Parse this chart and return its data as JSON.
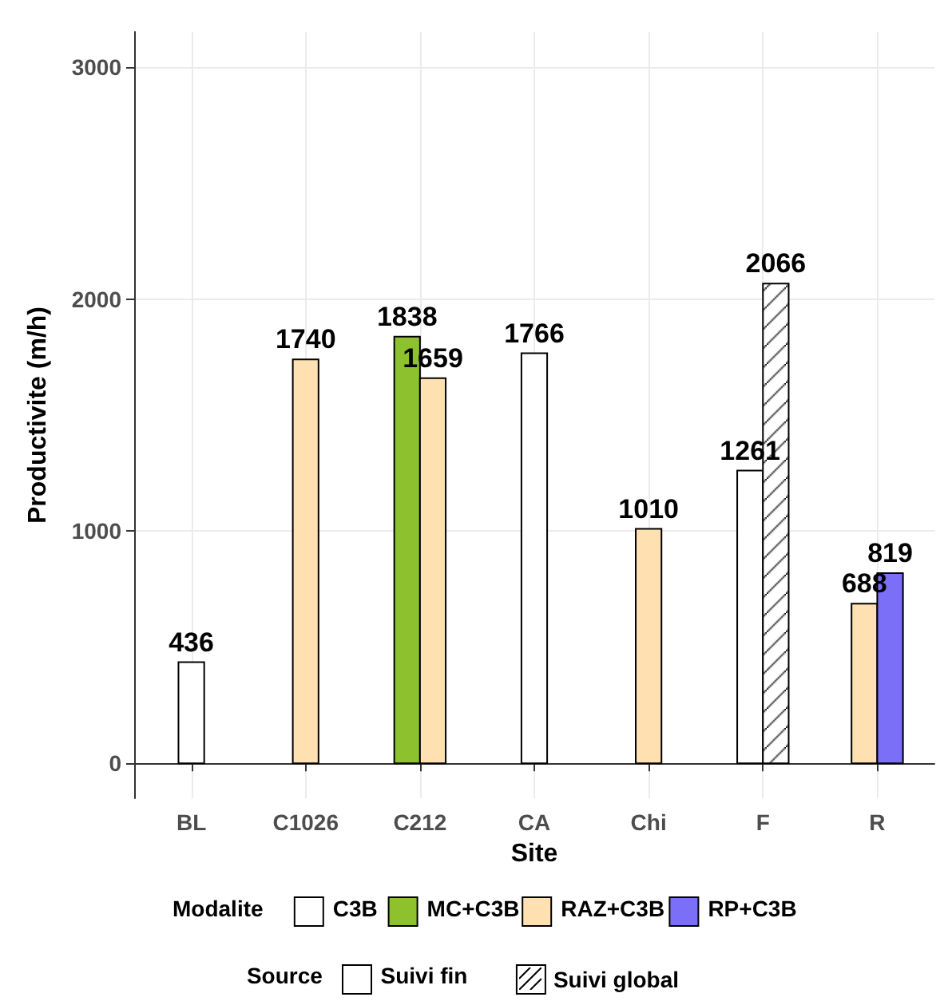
{
  "chart_data": {
    "type": "bar",
    "xlabel": "Site",
    "ylabel": "Productivite (m/h)",
    "legend_title": "Modalite",
    "annotations": [
      "Source",
      "Suivi fin"
    ],
    "categories": [
      "BL",
      "C1026",
      "C212",
      "CA",
      "Chi",
      "F",
      "R"
    ],
    "series": [
      {
        "name": "C3B",
        "color": "#ffffff",
        "values": [
          436,
          null,
          null,
          1766,
          null,
          1261,
          null
        ]
      },
      {
        "name": "MC+C3B",
        "color": "#8dc22e",
        "values": [
          null,
          null,
          1838,
          null,
          null,
          null,
          null
        ]
      },
      {
        "name": "RAZ+C3B",
        "color": "#ffe0b0",
        "values": [
          null,
          1740,
          1659,
          null,
          1010,
          null,
          688
        ]
      },
      {
        "name": "RP+C3B",
        "color": "#7b6ff8",
        "values": [
          null,
          null,
          null,
          null,
          null,
          null,
          819
        ]
      },
      {
        "name": "Suivi global",
        "color": "#ffffff",
        "values": [
          null,
          null,
          null,
          null,
          null,
          2066,
          null
        ]
      }
    ],
    "ylim": [
      -150,
      3150
    ],
    "yticks": [
      0,
      1000,
      2000,
      3000
    ],
    "grid": true,
    "legend": "bottom",
    "data_labels": true
  }
}
